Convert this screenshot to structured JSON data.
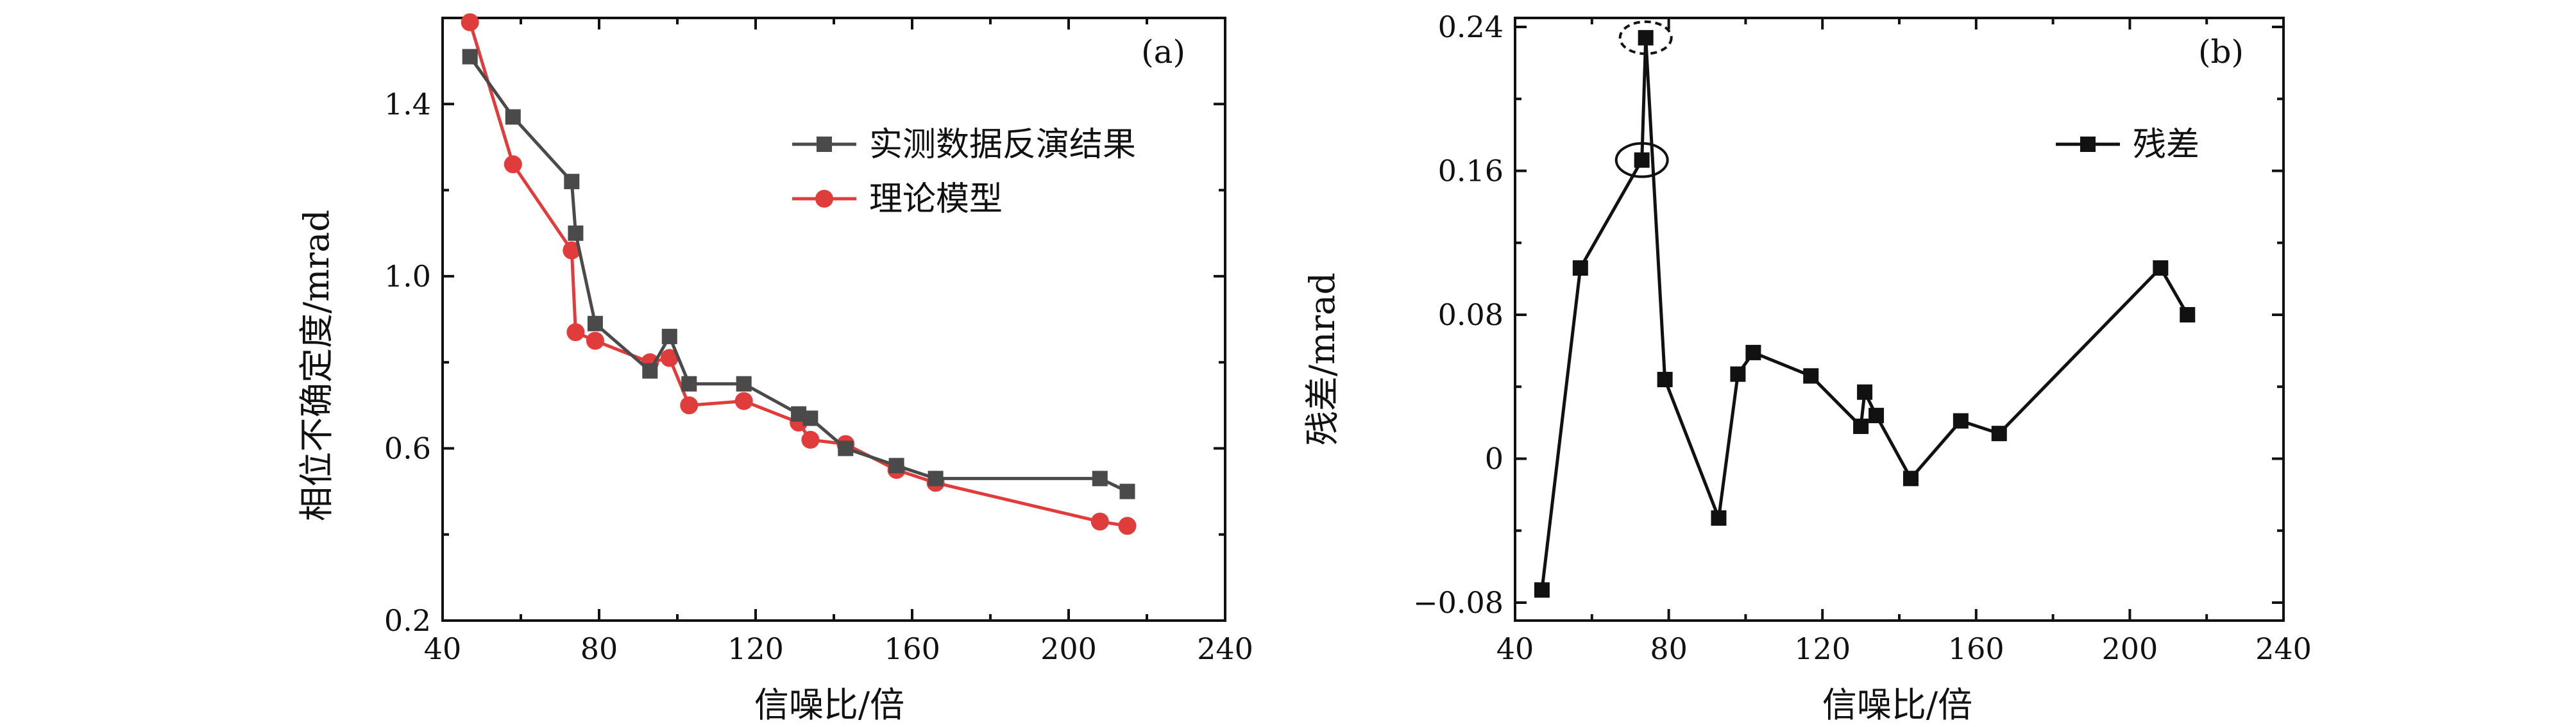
{
  "chart_data": [
    {
      "type": "line",
      "panel_label": "(a)",
      "xlabel": "信噪比/倍",
      "ylabel": "相位不确定度/mrad",
      "xlim": [
        40,
        240
      ],
      "ylim": [
        0.2,
        1.6
      ],
      "xticks": [
        "40",
        "80",
        "120",
        "160",
        "200",
        "240"
      ],
      "yticks": [
        "0.2",
        "0.6",
        "1.0",
        "1.4"
      ],
      "legend_position": "upper-right",
      "series": [
        {
          "name": "实测数据反演结果",
          "color": "#4a4a4a",
          "marker": "square",
          "x": [
            47,
            58,
            73,
            74,
            79,
            93,
            98,
            103,
            117,
            131,
            134,
            143,
            156,
            166,
            208,
            215
          ],
          "y": [
            1.51,
            1.37,
            1.22,
            1.1,
            0.89,
            0.78,
            0.86,
            0.75,
            0.75,
            0.68,
            0.67,
            0.6,
            0.56,
            0.53,
            0.53,
            0.5
          ]
        },
        {
          "name": "理论模型",
          "color": "#e03c3c",
          "marker": "circle",
          "x": [
            47,
            58,
            73,
            74,
            79,
            93,
            98,
            103,
            117,
            131,
            134,
            143,
            156,
            166,
            208,
            215
          ],
          "y": [
            1.59,
            1.26,
            1.06,
            0.87,
            0.85,
            0.8,
            0.81,
            0.7,
            0.71,
            0.66,
            0.62,
            0.61,
            0.55,
            0.52,
            0.43,
            0.42
          ]
        }
      ]
    },
    {
      "type": "line",
      "panel_label": "(b)",
      "xlabel": "信噪比/倍",
      "ylabel": "残差/mrad",
      "xlim": [
        40,
        240
      ],
      "ylim": [
        -0.09,
        0.245
      ],
      "xticks": [
        "40",
        "80",
        "120",
        "160",
        "200",
        "240"
      ],
      "yticks": [
        "−0.08",
        "0",
        "0.08",
        "0.16",
        "0.24"
      ],
      "legend_position": "upper-right",
      "annotations": [
        "dashed ellipse around point at x=74",
        "solid ellipse around point at x=73"
      ],
      "series": [
        {
          "name": "残差",
          "color": "#111111",
          "marker": "square",
          "x": [
            47,
            57,
            73,
            74,
            79,
            93,
            98,
            102,
            117,
            130,
            131,
            134,
            143,
            156,
            166,
            208,
            215
          ],
          "y": [
            -0.073,
            0.106,
            0.166,
            0.234,
            0.044,
            -0.033,
            0.047,
            0.059,
            0.046,
            0.018,
            0.037,
            0.024,
            -0.011,
            0.021,
            0.014,
            0.106,
            0.08
          ]
        }
      ]
    }
  ]
}
